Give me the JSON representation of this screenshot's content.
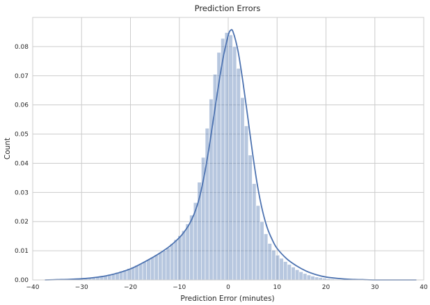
{
  "chart_data": {
    "type": "bar",
    "title": "Prediction Errors",
    "xlabel": "Prediction Error (minutes)",
    "ylabel": "Count",
    "xlim": [
      -40,
      40
    ],
    "ylim": [
      0,
      0.09
    ],
    "xticks": [
      "−40",
      "−30",
      "−20",
      "−10",
      "0",
      "10",
      "20",
      "30",
      "40"
    ],
    "xtick_values": [
      -40,
      -30,
      -20,
      -10,
      0,
      10,
      20,
      30,
      40
    ],
    "yticks": [
      "0.00",
      "0.01",
      "0.02",
      "0.03",
      "0.04",
      "0.05",
      "0.06",
      "0.07",
      "0.08"
    ],
    "ytick_values": [
      0.0,
      0.01,
      0.02,
      0.03,
      0.04,
      0.05,
      0.06,
      0.07,
      0.08
    ],
    "grid": true,
    "bar_color": "#4c72b0",
    "histogram": {
      "bin_edges": [
        -37.5,
        -36.7,
        -35.9,
        -35.1,
        -34.3,
        -33.5,
        -32.7,
        -31.9,
        -31.1,
        -30.3,
        -29.5,
        -28.7,
        -27.9,
        -27.1,
        -26.3,
        -25.5,
        -24.7,
        -23.9,
        -23.1,
        -22.3,
        -21.5,
        -20.7,
        -19.9,
        -19.1,
        -18.3,
        -17.5,
        -16.7,
        -15.9,
        -15.1,
        -14.3,
        -13.5,
        -12.7,
        -11.9,
        -11.1,
        -10.3,
        -9.5,
        -8.7,
        -7.9,
        -7.1,
        -6.3,
        -5.5,
        -4.7,
        -3.9,
        -3.1,
        -2.3,
        -1.5,
        -0.7,
        0.1,
        0.9,
        1.7,
        2.5,
        3.3,
        4.1,
        4.9,
        5.7,
        6.5,
        7.3,
        8.1,
        8.9,
        9.7,
        10.5,
        11.3,
        12.1,
        12.9,
        13.7,
        14.5,
        15.3,
        16.1,
        16.9,
        17.7,
        18.5,
        19.3,
        20.1,
        20.9,
        21.7,
        22.5,
        23.3,
        24.1,
        24.9,
        25.7,
        26.5,
        27.3,
        28.1,
        28.9,
        29.7,
        30.5,
        31.3,
        32.1,
        32.9,
        33.7,
        34.5,
        35.3,
        36.1,
        36.9,
        37.7,
        38.5
      ],
      "values": [
        0.0,
        0.0,
        0.0001,
        0.0001,
        0.0001,
        0.0002,
        0.0002,
        0.0003,
        0.0004,
        0.0005,
        0.0006,
        0.0007,
        0.0009,
        0.0011,
        0.0013,
        0.0016,
        0.0019,
        0.0022,
        0.0026,
        0.003,
        0.0034,
        0.0039,
        0.0044,
        0.005,
        0.0056,
        0.0062,
        0.007,
        0.0078,
        0.0086,
        0.0094,
        0.0101,
        0.011,
        0.0124,
        0.0138,
        0.0152,
        0.0169,
        0.0192,
        0.0222,
        0.0265,
        0.0335,
        0.042,
        0.052,
        0.062,
        0.0705,
        0.078,
        0.0828,
        0.0848,
        0.084,
        0.08,
        0.0725,
        0.0625,
        0.0528,
        0.0428,
        0.033,
        0.0255,
        0.02,
        0.0158,
        0.0125,
        0.0102,
        0.0085,
        0.0074,
        0.0063,
        0.0053,
        0.0044,
        0.0035,
        0.0028,
        0.0022,
        0.0017,
        0.0013,
        0.001,
        0.0008,
        0.0006,
        0.0004,
        0.0003,
        0.0002,
        0.0002,
        0.0001,
        0.0001,
        0.0001,
        0.0,
        0.0,
        0.0,
        0.0,
        0.0,
        0.0,
        0.0,
        0.0,
        0.0,
        0.0,
        0.0,
        0.0,
        0.0,
        0.0,
        0.0,
        0.0
      ]
    },
    "kde": {
      "x": [
        -37.5,
        -35,
        -32.5,
        -30,
        -27.5,
        -25,
        -22.5,
        -20,
        -18,
        -16,
        -14,
        -12,
        -10,
        -9,
        -8,
        -7,
        -6,
        -5,
        -4,
        -3,
        -2,
        -1,
        0,
        0.5,
        1,
        2,
        3,
        4,
        5,
        6,
        7,
        8,
        9,
        10,
        12,
        14,
        16,
        18,
        20,
        22.5,
        25,
        27.5,
        30,
        32.5,
        35,
        38.5
      ],
      "y": [
        0.0,
        0.0001,
        0.0002,
        0.0004,
        0.0008,
        0.0014,
        0.0024,
        0.0038,
        0.0054,
        0.0072,
        0.0092,
        0.0115,
        0.0145,
        0.0165,
        0.019,
        0.0225,
        0.0275,
        0.035,
        0.0445,
        0.0555,
        0.0665,
        0.0765,
        0.0838,
        0.0856,
        0.085,
        0.0785,
        0.068,
        0.0558,
        0.0432,
        0.0322,
        0.0238,
        0.0178,
        0.0138,
        0.0108,
        0.0072,
        0.0048,
        0.003,
        0.0018,
        0.001,
        0.0005,
        0.0002,
        0.0001,
        0.0,
        0.0,
        0.0,
        0.0
      ]
    }
  }
}
